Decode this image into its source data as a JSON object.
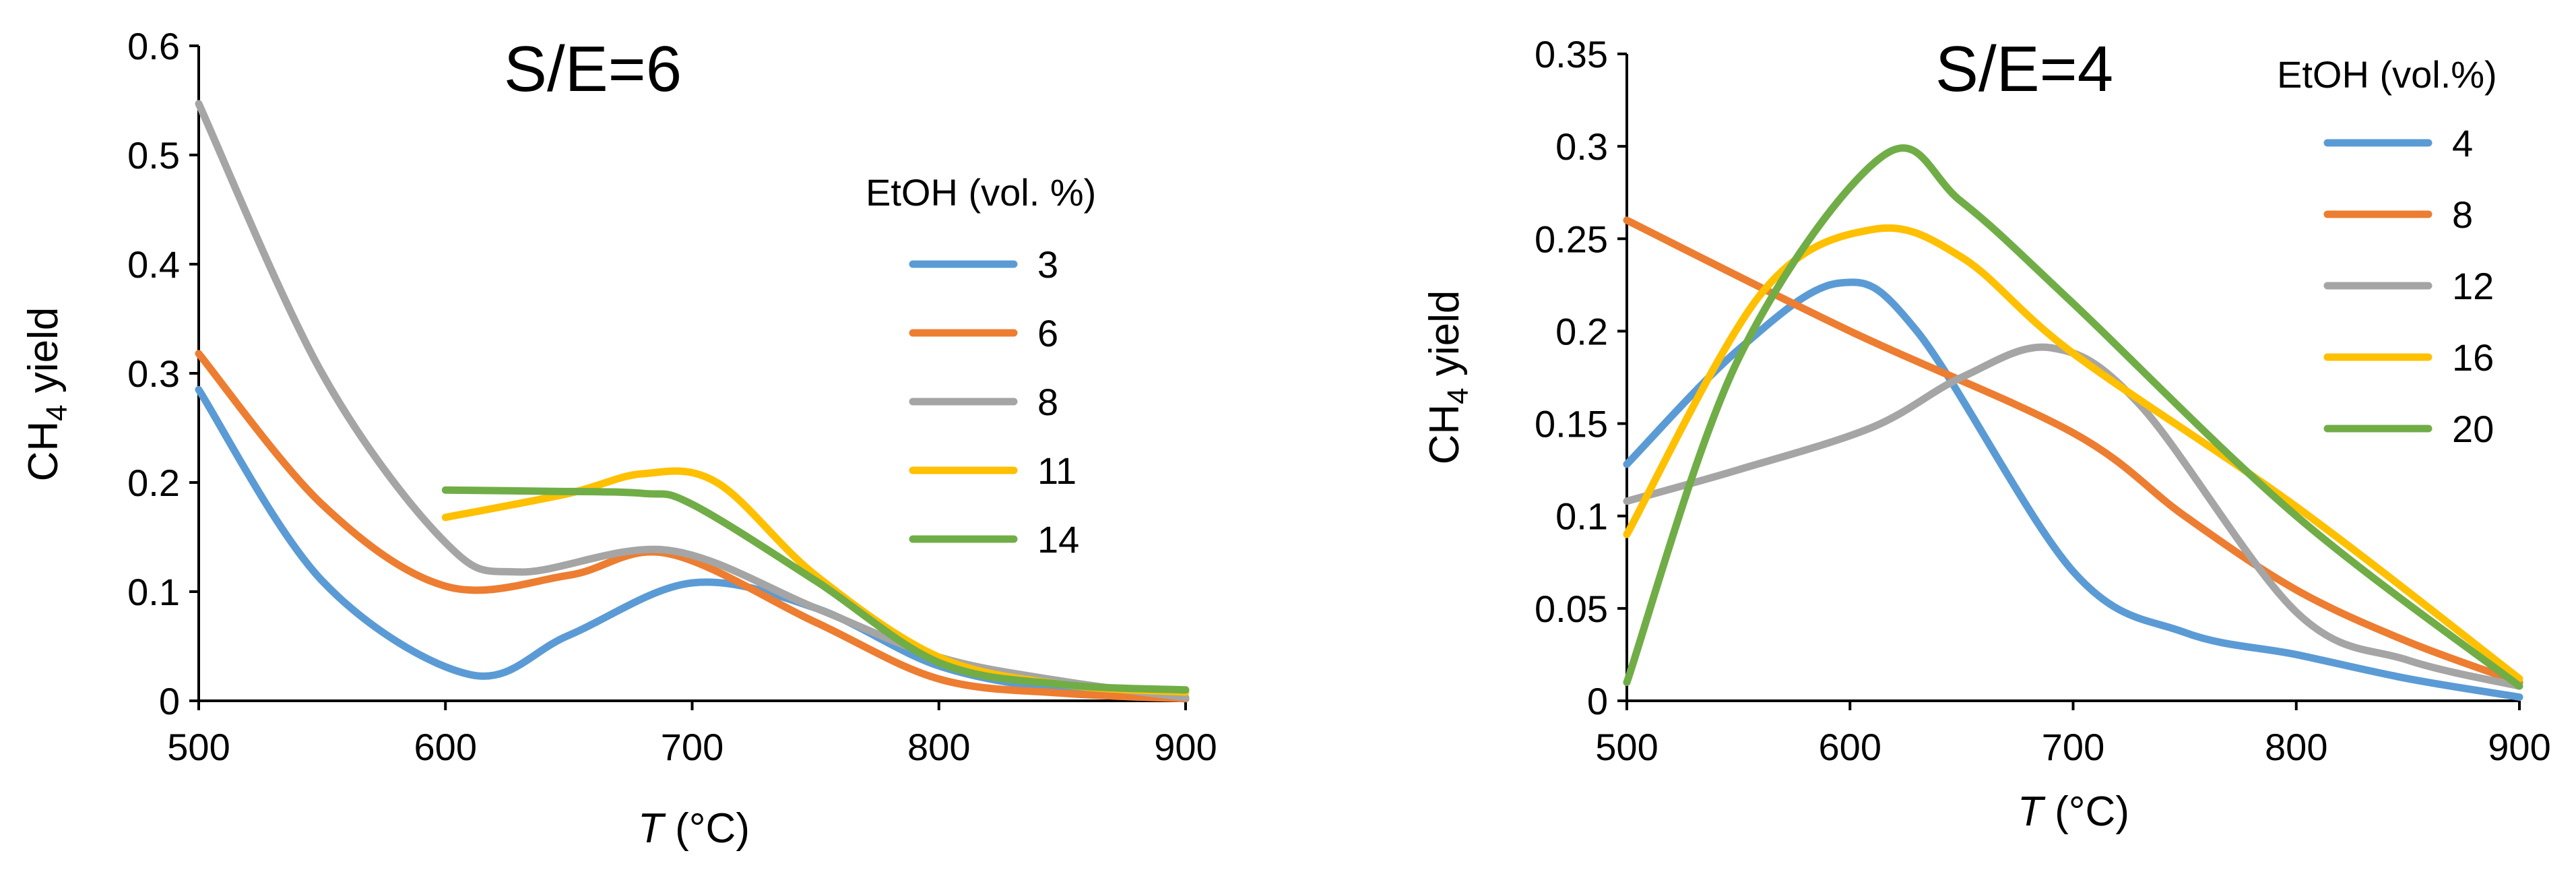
{
  "chart_data": [
    {
      "type": "line",
      "title": "S/E=6",
      "xlabel_italic": "T",
      "xlabel_rest": " (°C)",
      "ylabel_main": "CH",
      "ylabel_sub": "4",
      "ylabel_rest": " yield",
      "xlim": [
        500,
        900
      ],
      "ylim": [
        0,
        0.6
      ],
      "xticks": [
        500,
        600,
        700,
        800,
        900
      ],
      "yticks": [
        0,
        0.1,
        0.2,
        0.3,
        0.4,
        0.5,
        0.6
      ],
      "xtick_labels": [
        "500",
        "600",
        "700",
        "800",
        "900"
      ],
      "ytick_labels": [
        "0",
        "0.1",
        "0.2",
        "0.3",
        "0.4",
        "0.5",
        "0.6"
      ],
      "legend_title": "EtOH (vol. %)",
      "series": [
        {
          "name": "3",
          "color": "#5B9BD5",
          "points": [
            [
              500,
              0.285
            ],
            [
              550,
              0.11
            ],
            [
              610,
              0.024
            ],
            [
              650,
              0.06
            ],
            [
              700,
              0.108
            ],
            [
              750,
              0.085
            ],
            [
              800,
              0.032
            ],
            [
              850,
              0.01
            ],
            [
              900,
              0.002
            ]
          ]
        },
        {
          "name": "6",
          "color": "#ED7D31",
          "points": [
            [
              500,
              0.318
            ],
            [
              550,
              0.18
            ],
            [
              600,
              0.105
            ],
            [
              650,
              0.115
            ],
            [
              690,
              0.135
            ],
            [
              750,
              0.072
            ],
            [
              800,
              0.02
            ],
            [
              850,
              0.007
            ],
            [
              900,
              0.002
            ]
          ]
        },
        {
          "name": "8",
          "color": "#A5A5A5",
          "points": [
            [
              500,
              0.547
            ],
            [
              550,
              0.3
            ],
            [
              600,
              0.145
            ],
            [
              630,
              0.118
            ],
            [
              690,
              0.138
            ],
            [
              750,
              0.085
            ],
            [
              800,
              0.04
            ],
            [
              850,
              0.018
            ],
            [
              900,
              0.003
            ]
          ]
        },
        {
          "name": "11",
          "color": "#FFC000",
          "points": [
            [
              600,
              0.168
            ],
            [
              650,
              0.19
            ],
            [
              680,
              0.208
            ],
            [
              710,
              0.2
            ],
            [
              750,
              0.115
            ],
            [
              800,
              0.04
            ],
            [
              850,
              0.015
            ],
            [
              900,
              0.008
            ]
          ]
        },
        {
          "name": "14",
          "color": "#70AD47",
          "points": [
            [
              600,
              0.193
            ],
            [
              640,
              0.192
            ],
            [
              680,
              0.19
            ],
            [
              700,
              0.18
            ],
            [
              750,
              0.11
            ],
            [
              800,
              0.035
            ],
            [
              850,
              0.015
            ],
            [
              900,
              0.01
            ]
          ]
        }
      ]
    },
    {
      "type": "line",
      "title": "S/E=4",
      "xlabel_italic": "T",
      "xlabel_rest": " (°C)",
      "ylabel_main": "CH",
      "ylabel_sub": "4",
      "ylabel_rest": " yield",
      "xlim": [
        500,
        900
      ],
      "ylim": [
        0,
        0.35
      ],
      "xticks": [
        500,
        600,
        700,
        800,
        900
      ],
      "yticks": [
        0,
        0.05,
        0.1,
        0.15,
        0.2,
        0.25,
        0.3,
        0.35
      ],
      "xtick_labels": [
        "500",
        "600",
        "700",
        "800",
        "900"
      ],
      "ytick_labels": [
        "0",
        "0.05",
        "0.1",
        "0.15",
        "0.2",
        "0.25",
        "0.3",
        "0.35"
      ],
      "legend_title": "EtOH (vol.%)",
      "series": [
        {
          "name": "4",
          "color": "#5B9BD5",
          "points": [
            [
              500,
              0.128
            ],
            [
              550,
              0.19
            ],
            [
              595,
              0.226
            ],
            [
              630,
              0.2
            ],
            [
              700,
              0.07
            ],
            [
              750,
              0.037
            ],
            [
              800,
              0.025
            ],
            [
              850,
              0.012
            ],
            [
              900,
              0.002
            ]
          ]
        },
        {
          "name": "8",
          "color": "#ED7D31",
          "points": [
            [
              500,
              0.26
            ],
            [
              600,
              0.2
            ],
            [
              700,
              0.145
            ],
            [
              750,
              0.1
            ],
            [
              800,
              0.06
            ],
            [
              850,
              0.032
            ],
            [
              900,
              0.01
            ]
          ]
        },
        {
          "name": "12",
          "color": "#A5A5A5",
          "points": [
            [
              500,
              0.108
            ],
            [
              550,
              0.125
            ],
            [
              610,
              0.148
            ],
            [
              650,
              0.175
            ],
            [
              690,
              0.191
            ],
            [
              730,
              0.16
            ],
            [
              800,
              0.048
            ],
            [
              850,
              0.022
            ],
            [
              900,
              0.008
            ]
          ]
        },
        {
          "name": "16",
          "color": "#FFC000",
          "points": [
            [
              500,
              0.09
            ],
            [
              560,
              0.22
            ],
            [
              610,
              0.255
            ],
            [
              650,
              0.24
            ],
            [
              700,
              0.188
            ],
            [
              800,
              0.105
            ],
            [
              900,
              0.012
            ]
          ]
        },
        {
          "name": "20",
          "color": "#70AD47",
          "points": [
            [
              500,
              0.01
            ],
            [
              550,
              0.185
            ],
            [
              615,
              0.295
            ],
            [
              650,
              0.27
            ],
            [
              700,
              0.215
            ],
            [
              800,
              0.1
            ],
            [
              900,
              0.008
            ]
          ]
        }
      ]
    }
  ]
}
